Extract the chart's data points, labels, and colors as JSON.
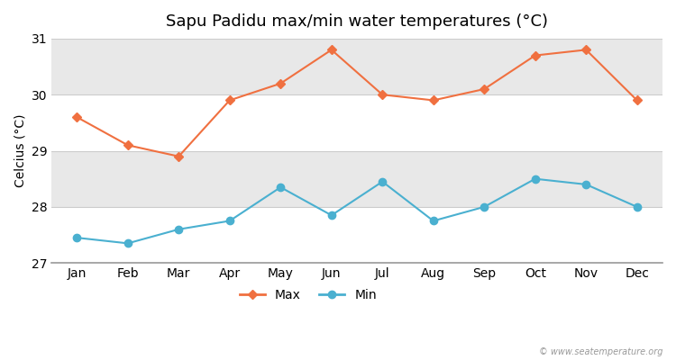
{
  "title": "Sapu Padidu max/min water temperatures (°C)",
  "ylabel": "Celcius (°C)",
  "months": [
    "Jan",
    "Feb",
    "Mar",
    "Apr",
    "May",
    "Jun",
    "Jul",
    "Aug",
    "Sep",
    "Oct",
    "Nov",
    "Dec"
  ],
  "max_values": [
    29.6,
    29.1,
    28.9,
    29.9,
    30.2,
    30.8,
    30.0,
    29.9,
    30.1,
    30.7,
    30.8,
    29.9
  ],
  "min_values": [
    27.45,
    27.35,
    27.6,
    27.75,
    28.35,
    27.85,
    28.45,
    27.75,
    28.0,
    28.5,
    28.4,
    28.0
  ],
  "max_color": "#f07040",
  "min_color": "#4ab0d0",
  "ylim": [
    27,
    31
  ],
  "yticks": [
    27,
    28,
    29,
    30,
    31
  ],
  "band_colors": [
    "#ffffff",
    "#e8e8e8",
    "#ffffff",
    "#e8e8e8"
  ],
  "grid_line_color": "#cccccc",
  "figure_bg": "#ffffff",
  "plot_bg": "#ffffff",
  "watermark": "© www.seatemperature.org",
  "title_fontsize": 13,
  "label_fontsize": 10,
  "tick_fontsize": 10
}
